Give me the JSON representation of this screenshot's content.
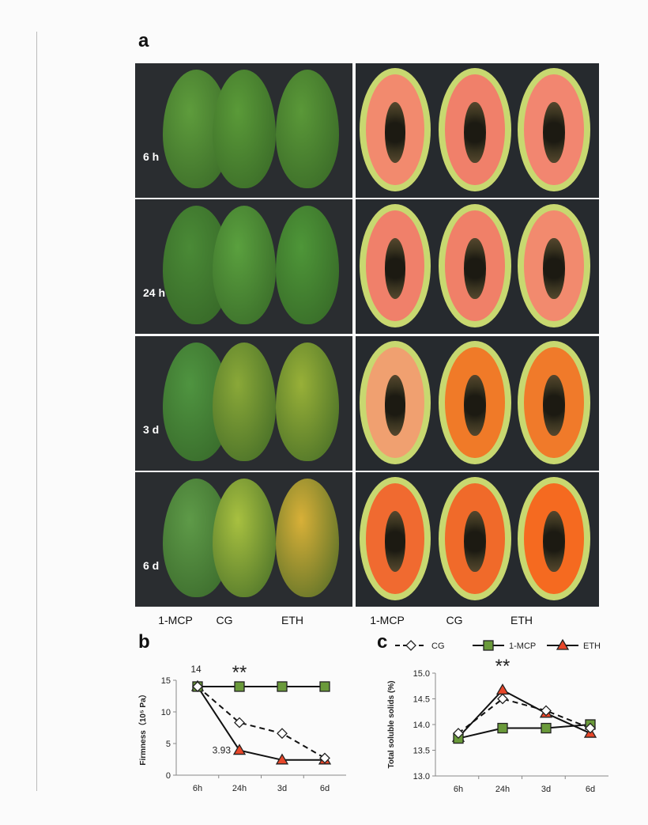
{
  "panel_labels": {
    "a": "a",
    "b": "b",
    "c": "c"
  },
  "photo_rows": [
    {
      "label": "6 h",
      "whole": [
        "#5e9c3c",
        "#5a9a38",
        "#5a9838"
      ],
      "flesh": [
        "#f28a6e",
        "#f0806a",
        "#f28670"
      ]
    },
    {
      "label": "24 h",
      "whole": [
        "#4a8a36",
        "#5aa03e",
        "#4e9638"
      ],
      "flesh": [
        "#f0806a",
        "#f08068",
        "#f28a6e"
      ]
    },
    {
      "label": "3 d",
      "whole": [
        "#4f9440",
        "#8aa838",
        "#98b038"
      ],
      "flesh": [
        "#f0a070",
        "#f07a28",
        "#f07a2a"
      ]
    },
    {
      "label": "6 d",
      "whole": [
        "#5e9a48",
        "#a8c040",
        "#d8b038"
      ],
      "flesh": [
        "#f06a30",
        "#f06a2a",
        "#f56a20"
      ]
    }
  ],
  "column_labels": [
    "1-MCP",
    "CG",
    "ETH",
    "1-MCP",
    "CG",
    "ETH"
  ],
  "chart_data": [
    {
      "type": "line",
      "panel": "b",
      "ylabel": "Firmness（10⁵ Pa）",
      "categories": [
        "6h",
        "24h",
        "3d",
        "6d"
      ],
      "ylim": [
        0,
        15
      ],
      "yticks": [
        "0",
        "5",
        "10",
        "15"
      ],
      "series": [
        {
          "name": "CG",
          "values": [
            14,
            8.3,
            6.6,
            2.7
          ],
          "color": "#ffffff",
          "marker": "diamond",
          "dashed": true
        },
        {
          "name": "1-MCP",
          "values": [
            14,
            14,
            14,
            14
          ],
          "color": "#6a9a3a",
          "marker": "square",
          "dashed": false
        },
        {
          "name": "ETH",
          "values": [
            14,
            3.93,
            2.4,
            2.4
          ],
          "color": "#e8472a",
          "marker": "triangle",
          "dashed": false
        }
      ],
      "annotations": [
        {
          "text": "14"
        },
        {
          "text": "3.93"
        },
        {
          "text": "**"
        }
      ]
    },
    {
      "type": "line",
      "panel": "c",
      "ylabel": "Total soluble solids (%)",
      "categories": [
        "6h",
        "24h",
        "3d",
        "6d"
      ],
      "ylim": [
        13,
        15
      ],
      "yticks": [
        "13.0",
        "13.5",
        "14.0",
        "14.5",
        "15.0"
      ],
      "series": [
        {
          "name": "CG",
          "values": [
            13.83,
            14.5,
            14.27,
            13.93
          ],
          "color": "#ffffff",
          "marker": "diamond",
          "dashed": true
        },
        {
          "name": "1-MCP",
          "values": [
            13.73,
            13.93,
            13.93,
            14.0
          ],
          "color": "#6a9a3a",
          "marker": "square",
          "dashed": false
        },
        {
          "name": "ETH",
          "values": [
            13.75,
            14.67,
            14.22,
            13.83
          ],
          "color": "#e8472a",
          "marker": "triangle",
          "dashed": false
        }
      ],
      "annotations": [
        {
          "text": "**"
        }
      ],
      "legend": "top"
    }
  ]
}
